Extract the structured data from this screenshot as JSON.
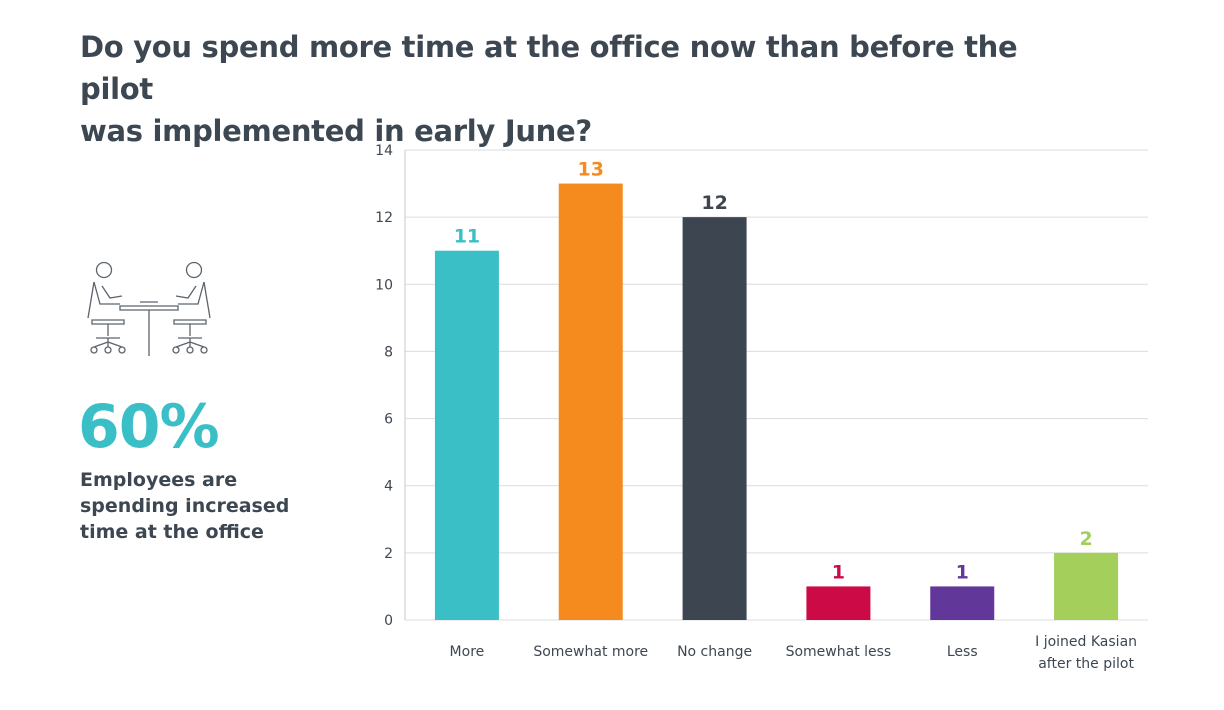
{
  "title": {
    "line1": "Do you spend more time at the office now than before the pilot",
    "line2": "was implemented in early June?"
  },
  "illustration": {
    "icon": "meeting-desk-icon"
  },
  "stat": {
    "value": "60%",
    "caption_lines": [
      "Employees are",
      "spending increased",
      "time at the office"
    ]
  },
  "chart_data": {
    "type": "bar",
    "categories": [
      "More",
      "Somewhat more",
      "No change",
      "Somewhat less",
      "Less",
      "I joined Kasian after the pilot"
    ],
    "category_label_lines": [
      [
        "More"
      ],
      [
        "Somewhat more"
      ],
      [
        "No change"
      ],
      [
        "Somewhat less"
      ],
      [
        "Less"
      ],
      [
        "I joined Kasian",
        "after the pilot"
      ]
    ],
    "values": [
      11,
      13,
      12,
      1,
      1,
      2
    ],
    "colors": [
      "#3bbfc7",
      "#f58a1f",
      "#3d4650",
      "#cc0a45",
      "#62379a",
      "#a3cf5a"
    ],
    "ylim": [
      0,
      14
    ],
    "yticks": [
      0,
      2,
      4,
      6,
      8,
      10,
      12,
      14
    ],
    "grid": true,
    "data_labels": true
  }
}
